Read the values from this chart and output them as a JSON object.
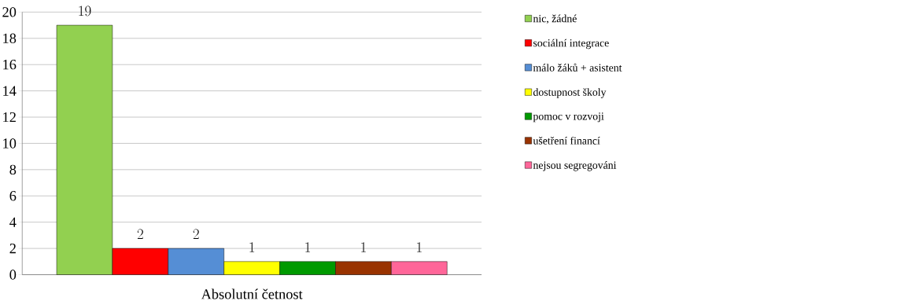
{
  "chart_data": {
    "type": "bar",
    "categories": [
      "Absolutní četnost"
    ],
    "series": [
      {
        "name": "nic, žádné",
        "color": "#92d050",
        "values": [
          19
        ]
      },
      {
        "name": "sociální integrace",
        "color": "#ff0000",
        "values": [
          2
        ]
      },
      {
        "name": "málo žáků + asistent",
        "color": "#558ed5",
        "values": [
          2
        ]
      },
      {
        "name": "dostupnost školy",
        "color": "#ffff00",
        "values": [
          1
        ]
      },
      {
        "name": "pomoc v rozvoji",
        "color": "#009a00",
        "values": [
          1
        ]
      },
      {
        "name": "ušetření financí",
        "color": "#993300",
        "values": [
          1
        ]
      },
      {
        "name": "nejsou segregováni",
        "color": "#ff6699",
        "values": [
          1
        ]
      }
    ],
    "ylim": [
      0,
      20
    ],
    "yticks": [
      0,
      2,
      4,
      6,
      8,
      10,
      12,
      14,
      16,
      18,
      20
    ],
    "grid": "y",
    "legend": "right",
    "data_labels": true
  }
}
